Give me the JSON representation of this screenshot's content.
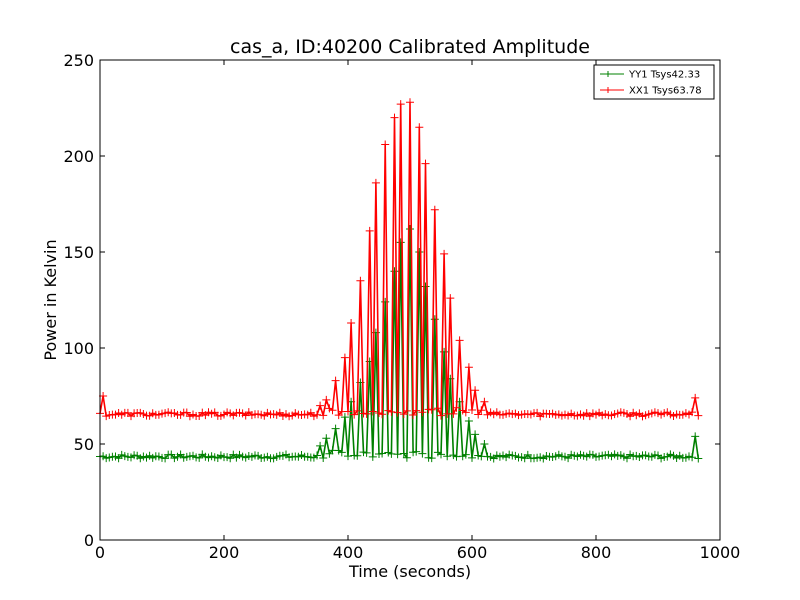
{
  "chart_data": {
    "type": "line",
    "title": "cas_a, ID:40200 Calibrated Amplitude",
    "xlabel": "Time (seconds)",
    "ylabel": "Power in Kelvin",
    "xlim": [
      0,
      1000
    ],
    "ylim": [
      0,
      250
    ],
    "xticks": [
      "0",
      "200",
      "400",
      "600",
      "800",
      "1000"
    ],
    "yticks": [
      "0",
      "50",
      "100",
      "150",
      "200",
      "250"
    ],
    "grid": false,
    "legend": "top-right",
    "marker": "+",
    "sample_interval": 5,
    "series": [
      {
        "name": "YY1 Tsys42.33",
        "color": "#008000",
        "baseline": 43.5,
        "spike_x": [
          353,
          367,
          380,
          393,
          407,
          420,
          433,
          447,
          460,
          473,
          487,
          500,
          513,
          527,
          540,
          553,
          567,
          580,
          593,
          607,
          620,
          960
        ],
        "spike_y": [
          49,
          53,
          58,
          64,
          72,
          82,
          93,
          108,
          124,
          140,
          155,
          162,
          150,
          132,
          115,
          98,
          84,
          72,
          62,
          55,
          50,
          54
        ]
      },
      {
        "name": "XX1 Tsys63.78",
        "color": "#ff0000",
        "baseline": 65.5,
        "spike_x": [
          3,
          353,
          367,
          380,
          393,
          407,
          420,
          433,
          447,
          460,
          473,
          487,
          500,
          513,
          527,
          540,
          553,
          567,
          580,
          593,
          607,
          620,
          960
        ],
        "spike_y": [
          75,
          70,
          73,
          83,
          95,
          113,
          135,
          161,
          186,
          206,
          220,
          227,
          228,
          215,
          196,
          172,
          149,
          126,
          104,
          90,
          78,
          72,
          74
        ]
      }
    ]
  }
}
